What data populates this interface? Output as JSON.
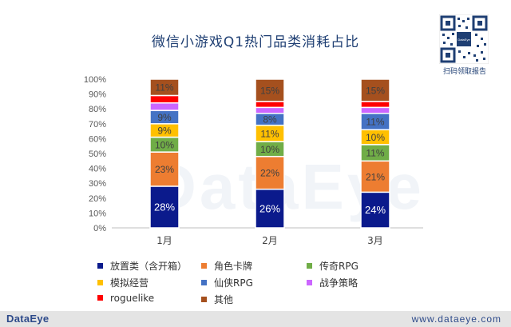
{
  "title": "微信小游戏Q1热门品类消耗占比",
  "qr_caption": "扫码领取报告",
  "watermark": "DataEye",
  "footer": {
    "logo": "DataEye",
    "url": "www.dataeye.com"
  },
  "chart_data": {
    "type": "bar",
    "stacked": true,
    "title": "微信小游戏Q1热门品类消耗占比",
    "categories": [
      "1月",
      "2月",
      "3月"
    ],
    "ylim": [
      0,
      100
    ],
    "yticks": [
      "0%",
      "10%",
      "20%",
      "30%",
      "40%",
      "50%",
      "60%",
      "70%",
      "80%",
      "90%",
      "100%"
    ],
    "series": [
      {
        "name": "放置类（含开箱）",
        "color": "#0b1a8c",
        "values": [
          28,
          26,
          24
        ],
        "labels": [
          "28%",
          "26%",
          "24%"
        ]
      },
      {
        "name": "角色卡牌",
        "color": "#ed7d31",
        "values": [
          23,
          22,
          21
        ],
        "labels": [
          "23%",
          "22%",
          "21%"
        ]
      },
      {
        "name": "传奇RPG",
        "color": "#70ad47",
        "values": [
          10,
          10,
          11
        ],
        "labels": [
          "10%",
          "10%",
          "11%"
        ]
      },
      {
        "name": "模拟经营",
        "color": "#ffc000",
        "values": [
          9,
          11,
          10
        ],
        "labels": [
          "9%",
          "11%",
          "10%"
        ]
      },
      {
        "name": "仙侠RPG",
        "color": "#4472c4",
        "values": [
          9,
          8,
          11
        ],
        "labels": [
          "9%",
          "8%",
          "11%"
        ]
      },
      {
        "name": "战争策略",
        "color": "#cc66ff",
        "values": [
          5,
          4,
          4
        ],
        "labels": [
          "",
          "",
          ""
        ]
      },
      {
        "name": "roguelike",
        "color": "#ff0000",
        "values": [
          5,
          4,
          4
        ],
        "labels": [
          "",
          "",
          ""
        ]
      },
      {
        "name": "其他",
        "color": "#a5501e",
        "values": [
          11,
          15,
          15
        ],
        "labels": [
          "11%",
          "15%",
          "15%"
        ]
      }
    ],
    "legend_position": "bottom"
  }
}
